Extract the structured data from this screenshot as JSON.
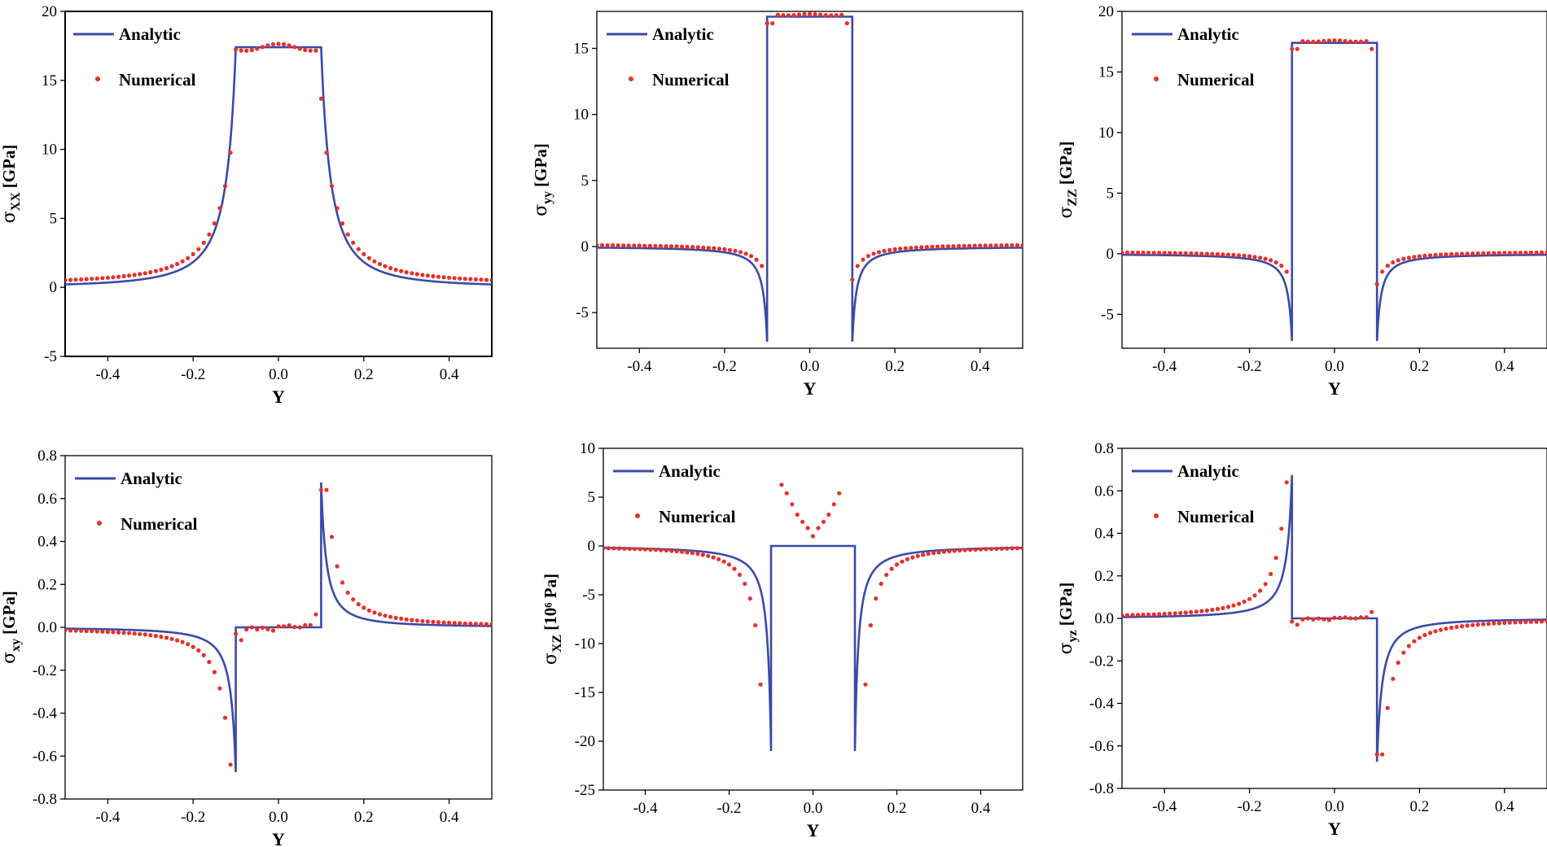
{
  "colors": {
    "analytic": "#3a4aa8",
    "numerical": "#e8302a",
    "axis": "#000000"
  },
  "chart_data": [
    {
      "id": "sxx",
      "type": "line",
      "kind": "sxx",
      "ylabel": {
        "symbol": "σ",
        "sub": "XX",
        "unit": "[GPa]"
      },
      "xlabel": "Y",
      "xlim": [
        -0.5,
        0.5
      ],
      "ylim": [
        -5,
        20
      ],
      "xticks": [
        -0.4,
        -0.2,
        0.0,
        0.2,
        0.4
      ],
      "xtick_labels": [
        "-0.4",
        "-0.2",
        "0.0",
        "0.2",
        "0.4"
      ],
      "yticks": [
        -5,
        0,
        5,
        10,
        15,
        20
      ],
      "ytick_labels": [
        "-5",
        "0",
        "5",
        "10",
        "15",
        "20"
      ],
      "legend": {
        "analytic": "Analytic",
        "numerical": "Numerical",
        "position": "top-left"
      },
      "series": [
        {
          "name": "Analytic",
          "style": "line"
        },
        {
          "name": "Numerical",
          "style": "points"
        }
      ],
      "params": {
        "plateau": 17.4,
        "edge": 0.1,
        "c": 0.07
      }
    },
    {
      "id": "syy",
      "type": "line",
      "kind": "jump",
      "ylabel": {
        "symbol": "σ",
        "sub": "yy",
        "unit": "[GPa]"
      },
      "xlabel": "Y",
      "xlim": [
        -0.5,
        0.5
      ],
      "ylim": [
        -7.7,
        17.8
      ],
      "xticks": [
        -0.4,
        -0.2,
        0.0,
        0.2,
        0.4
      ],
      "xtick_labels": [
        "-0.4",
        "-0.2",
        "0.0",
        "0.2",
        "0.4"
      ],
      "yticks": [
        -5,
        0,
        5,
        10,
        15
      ],
      "ytick_labels": [
        "-5",
        "0",
        "5",
        "10",
        "15"
      ],
      "legend": {
        "analytic": "Analytic",
        "numerical": "Numerical",
        "position": "top-left"
      },
      "series": [
        {
          "name": "Analytic",
          "style": "line"
        },
        {
          "name": "Numerical",
          "style": "points"
        }
      ],
      "params": {
        "plateau": 17.4,
        "edge": 0.1,
        "dip": -7.2
      }
    },
    {
      "id": "szz",
      "type": "line",
      "kind": "jump",
      "ylabel": {
        "symbol": "σ",
        "sub": "ZZ",
        "unit": "[GPa]"
      },
      "xlabel": "Y",
      "xlim": [
        -0.5,
        0.5
      ],
      "ylim": [
        -7.8,
        20
      ],
      "xticks": [
        -0.4,
        -0.2,
        0.0,
        0.2,
        0.4
      ],
      "xtick_labels": [
        "-0.4",
        "-0.2",
        "0.0",
        "0.2",
        "0.4"
      ],
      "yticks": [
        -5,
        0,
        5,
        10,
        15,
        20
      ],
      "ytick_labels": [
        "-5",
        "0",
        "5",
        "10",
        "15",
        "20"
      ],
      "legend": {
        "analytic": "Analytic",
        "numerical": "Numerical",
        "position": "top-left"
      },
      "series": [
        {
          "name": "Analytic",
          "style": "line"
        },
        {
          "name": "Numerical",
          "style": "points"
        }
      ],
      "params": {
        "plateau": 17.4,
        "edge": 0.1,
        "dip": -7.2
      }
    },
    {
      "id": "sxy",
      "type": "line",
      "kind": "antisym",
      "ylabel": {
        "symbol": "σ",
        "sub": "xy",
        "unit": "[GPa]"
      },
      "xlabel": "Y",
      "xlim": [
        -0.5,
        0.5
      ],
      "ylim": [
        -0.8,
        0.8
      ],
      "xticks": [
        -0.4,
        -0.2,
        0.0,
        0.2,
        0.4
      ],
      "xtick_labels": [
        "-0.4",
        "-0.2",
        "0.0",
        "0.2",
        "0.4"
      ],
      "yticks": [
        -0.8,
        -0.6,
        -0.4,
        -0.2,
        0.0,
        0.2,
        0.4,
        0.6,
        0.8
      ],
      "ytick_labels": [
        "-0.8",
        "-0.6",
        "-0.4",
        "-0.2",
        "0.0",
        "0.2",
        "0.4",
        "0.6",
        "0.8"
      ],
      "legend": {
        "analytic": "Analytic",
        "numerical": "Numerical",
        "position": "top-left"
      },
      "series": [
        {
          "name": "Analytic",
          "style": "line"
        },
        {
          "name": "Numerical",
          "style": "points"
        }
      ],
      "params": {
        "peak": 0.675,
        "edge": 0.1,
        "sign": 1
      }
    },
    {
      "id": "sxz",
      "type": "line",
      "kind": "sxz",
      "ylabel": {
        "symbol": "σ",
        "sub": "XZ",
        "unit": "[10⁶ Pa]"
      },
      "xlabel": "Y",
      "xlim": [
        -0.5,
        0.5
      ],
      "ylim": [
        -25,
        10
      ],
      "xticks": [
        -0.4,
        -0.2,
        0.0,
        0.2,
        0.4
      ],
      "xtick_labels": [
        "-0.4",
        "-0.2",
        "0.0",
        "0.2",
        "0.4"
      ],
      "yticks": [
        -25,
        -20,
        -15,
        -10,
        -5,
        0,
        5,
        10
      ],
      "ytick_labels": [
        "-25",
        "-20",
        "-15",
        "-10",
        "-5",
        "0",
        "5",
        "10"
      ],
      "legend": {
        "analytic": "Analytic",
        "numerical": "Numerical",
        "position": "top-left"
      },
      "series": [
        {
          "name": "Analytic",
          "style": "line"
        },
        {
          "name": "Numerical",
          "style": "points"
        }
      ],
      "params": {
        "dip": -21,
        "edge": 0.1
      }
    },
    {
      "id": "syz",
      "type": "line",
      "kind": "antisym",
      "ylabel": {
        "symbol": "σ",
        "sub": "yz",
        "unit": "[GPa]"
      },
      "xlabel": "Y",
      "xlim": [
        -0.5,
        0.5
      ],
      "ylim": [
        -0.8,
        0.8
      ],
      "xticks": [
        -0.4,
        -0.2,
        0.0,
        0.2,
        0.4
      ],
      "xtick_labels": [
        "-0.4",
        "-0.2",
        "0.0",
        "0.2",
        "0.4"
      ],
      "yticks": [
        -0.8,
        -0.6,
        -0.4,
        -0.2,
        0.0,
        0.2,
        0.4,
        0.6,
        0.8
      ],
      "ytick_labels": [
        "-0.8",
        "-0.6",
        "-0.4",
        "-0.2",
        "0.0",
        "0.2",
        "0.4",
        "0.6",
        "0.8"
      ],
      "legend": {
        "analytic": "Analytic",
        "numerical": "Numerical",
        "position": "top-left"
      },
      "series": [
        {
          "name": "Analytic",
          "style": "line"
        },
        {
          "name": "Numerical",
          "style": "points"
        }
      ],
      "params": {
        "peak": 0.675,
        "edge": 0.1,
        "sign": -1
      }
    }
  ]
}
